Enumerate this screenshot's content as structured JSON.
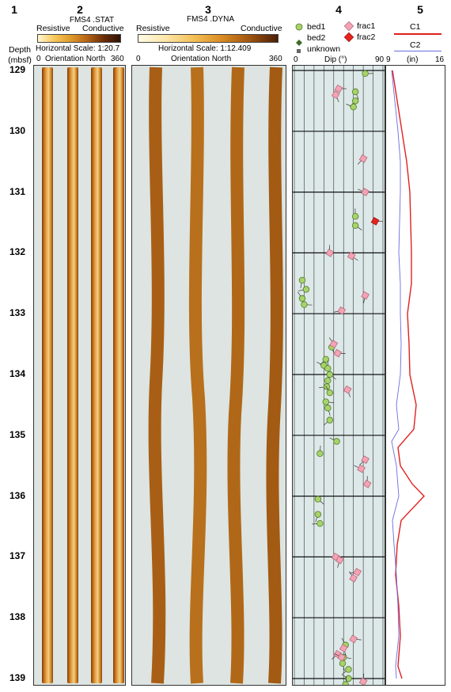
{
  "columns": {
    "c1": "1",
    "c2": "2",
    "c3": "3",
    "c4": "4",
    "c5": "5"
  },
  "depth_header": {
    "line1": "Depth",
    "line2": "(mbsf)"
  },
  "stat": {
    "title": "FMS4 .STAT",
    "resistive": "Resistive",
    "conductive": "Conductive",
    "hscale": "Horizontal Scale: 1:20.7",
    "tick_left": "0",
    "orientation": "Orientation North",
    "tick_right": "360"
  },
  "dyna": {
    "title": "FMS4 .DYNA",
    "resistive": "Resistive",
    "conductive": "Conductive",
    "hscale": "Horizontal Scale:  1:12.409",
    "tick_left": "0",
    "orientation": "Orientation North",
    "tick_right": "360"
  },
  "legend": {
    "bed1": "bed1",
    "bed2": "bed2",
    "unknown": "unknown",
    "frac1": "frac1",
    "frac2": "frac2"
  },
  "dip_axis": {
    "min": "0",
    "label": "Dip (°)",
    "max": "90"
  },
  "caliper": {
    "c1": "C1",
    "c2": "C2",
    "min": "9",
    "unit": "(in)",
    "max": "16"
  },
  "colors": {
    "bed1": "#a7d36a",
    "bed2": "#3f6b2a",
    "frac1": "#f4a3b4",
    "frac2": "#e8231e",
    "c1": "#e02020",
    "c2": "#6b6be0",
    "dip_bg": "#dde8e8"
  },
  "chart_data": {
    "type": "scatter",
    "depth_range": [
      129,
      139
    ],
    "depth_ticks": [
      "129",
      "130",
      "131",
      "132",
      "133",
      "134",
      "135",
      "136",
      "137",
      "138",
      "139"
    ],
    "dip_range": [
      0,
      90
    ],
    "dip_series": [
      {
        "name": "bed1",
        "points": [
          [
            129.05,
            72
          ],
          [
            129.35,
            62
          ],
          [
            129.5,
            62
          ],
          [
            129.6,
            60
          ],
          [
            131.4,
            62
          ],
          [
            131.55,
            62
          ],
          [
            132.45,
            8
          ],
          [
            132.6,
            12
          ],
          [
            132.75,
            8
          ],
          [
            132.85,
            10
          ],
          [
            133.55,
            38
          ],
          [
            133.75,
            32
          ],
          [
            133.85,
            30
          ],
          [
            133.9,
            34
          ],
          [
            134.0,
            36
          ],
          [
            134.1,
            34
          ],
          [
            134.2,
            33
          ],
          [
            134.3,
            36
          ],
          [
            134.45,
            32
          ],
          [
            134.55,
            34
          ],
          [
            134.75,
            36
          ],
          [
            135.1,
            43
          ],
          [
            135.3,
            26
          ],
          [
            136.05,
            24
          ],
          [
            136.3,
            24
          ],
          [
            136.45,
            26
          ],
          [
            138.45,
            52
          ],
          [
            138.65,
            50
          ],
          [
            138.75,
            49
          ],
          [
            138.85,
            55
          ],
          [
            139.0,
            55
          ],
          [
            139.1,
            52
          ]
        ]
      },
      {
        "name": "frac1",
        "points": [
          [
            129.3,
            45
          ],
          [
            129.4,
            42
          ],
          [
            130.45,
            70
          ],
          [
            131.0,
            72
          ],
          [
            132.0,
            36
          ],
          [
            132.05,
            58
          ],
          [
            132.7,
            72
          ],
          [
            132.95,
            48
          ],
          [
            133.5,
            40
          ],
          [
            133.65,
            44
          ],
          [
            134.25,
            54
          ],
          [
            135.4,
            72
          ],
          [
            135.55,
            68
          ],
          [
            135.8,
            74
          ],
          [
            137.0,
            42
          ],
          [
            137.05,
            46
          ],
          [
            137.25,
            64
          ],
          [
            137.35,
            60
          ],
          [
            138.35,
            60
          ],
          [
            138.5,
            50
          ],
          [
            138.6,
            44
          ],
          [
            138.65,
            48
          ],
          [
            139.05,
            70
          ]
        ]
      },
      {
        "name": "frac2",
        "points": [
          [
            131.48,
            82
          ]
        ]
      }
    ],
    "caliper_series": [
      {
        "name": "C1",
        "points": [
          [
            129.0,
            9.6
          ],
          [
            129.5,
            10.2
          ],
          [
            130.0,
            10.8
          ],
          [
            130.5,
            11.4
          ],
          [
            131.0,
            11.8
          ],
          [
            131.5,
            11.9
          ],
          [
            132.0,
            12.0
          ],
          [
            132.5,
            12.0
          ],
          [
            133.0,
            11.5
          ],
          [
            133.5,
            11.7
          ],
          [
            134.0,
            11.8
          ],
          [
            134.5,
            12.6
          ],
          [
            134.9,
            12.3
          ],
          [
            135.2,
            10.3
          ],
          [
            135.5,
            10.6
          ],
          [
            135.8,
            12.1
          ],
          [
            136.0,
            13.6
          ],
          [
            136.4,
            10.7
          ],
          [
            136.8,
            10.2
          ],
          [
            137.3,
            10.0
          ],
          [
            137.8,
            10.4
          ],
          [
            138.3,
            10.6
          ],
          [
            138.8,
            10.3
          ],
          [
            139.0,
            10.8
          ]
        ]
      },
      {
        "name": "C2",
        "points": [
          [
            129.0,
            9.5
          ],
          [
            129.5,
            9.9
          ],
          [
            130.0,
            10.3
          ],
          [
            130.5,
            10.6
          ],
          [
            131.0,
            10.6
          ],
          [
            131.5,
            10.5
          ],
          [
            132.0,
            10.4
          ],
          [
            132.5,
            10.6
          ],
          [
            133.0,
            10.6
          ],
          [
            133.5,
            10.7
          ],
          [
            134.0,
            10.6
          ],
          [
            134.5,
            10.1
          ],
          [
            134.9,
            10.4
          ],
          [
            135.1,
            9.5
          ],
          [
            135.5,
            10.1
          ],
          [
            136.0,
            10.4
          ],
          [
            136.4,
            9.6
          ],
          [
            136.8,
            9.8
          ],
          [
            137.3,
            10.1
          ],
          [
            137.8,
            10.3
          ],
          [
            138.3,
            10.4
          ],
          [
            138.8,
            10.0
          ],
          [
            139.0,
            10.1
          ]
        ]
      }
    ]
  }
}
